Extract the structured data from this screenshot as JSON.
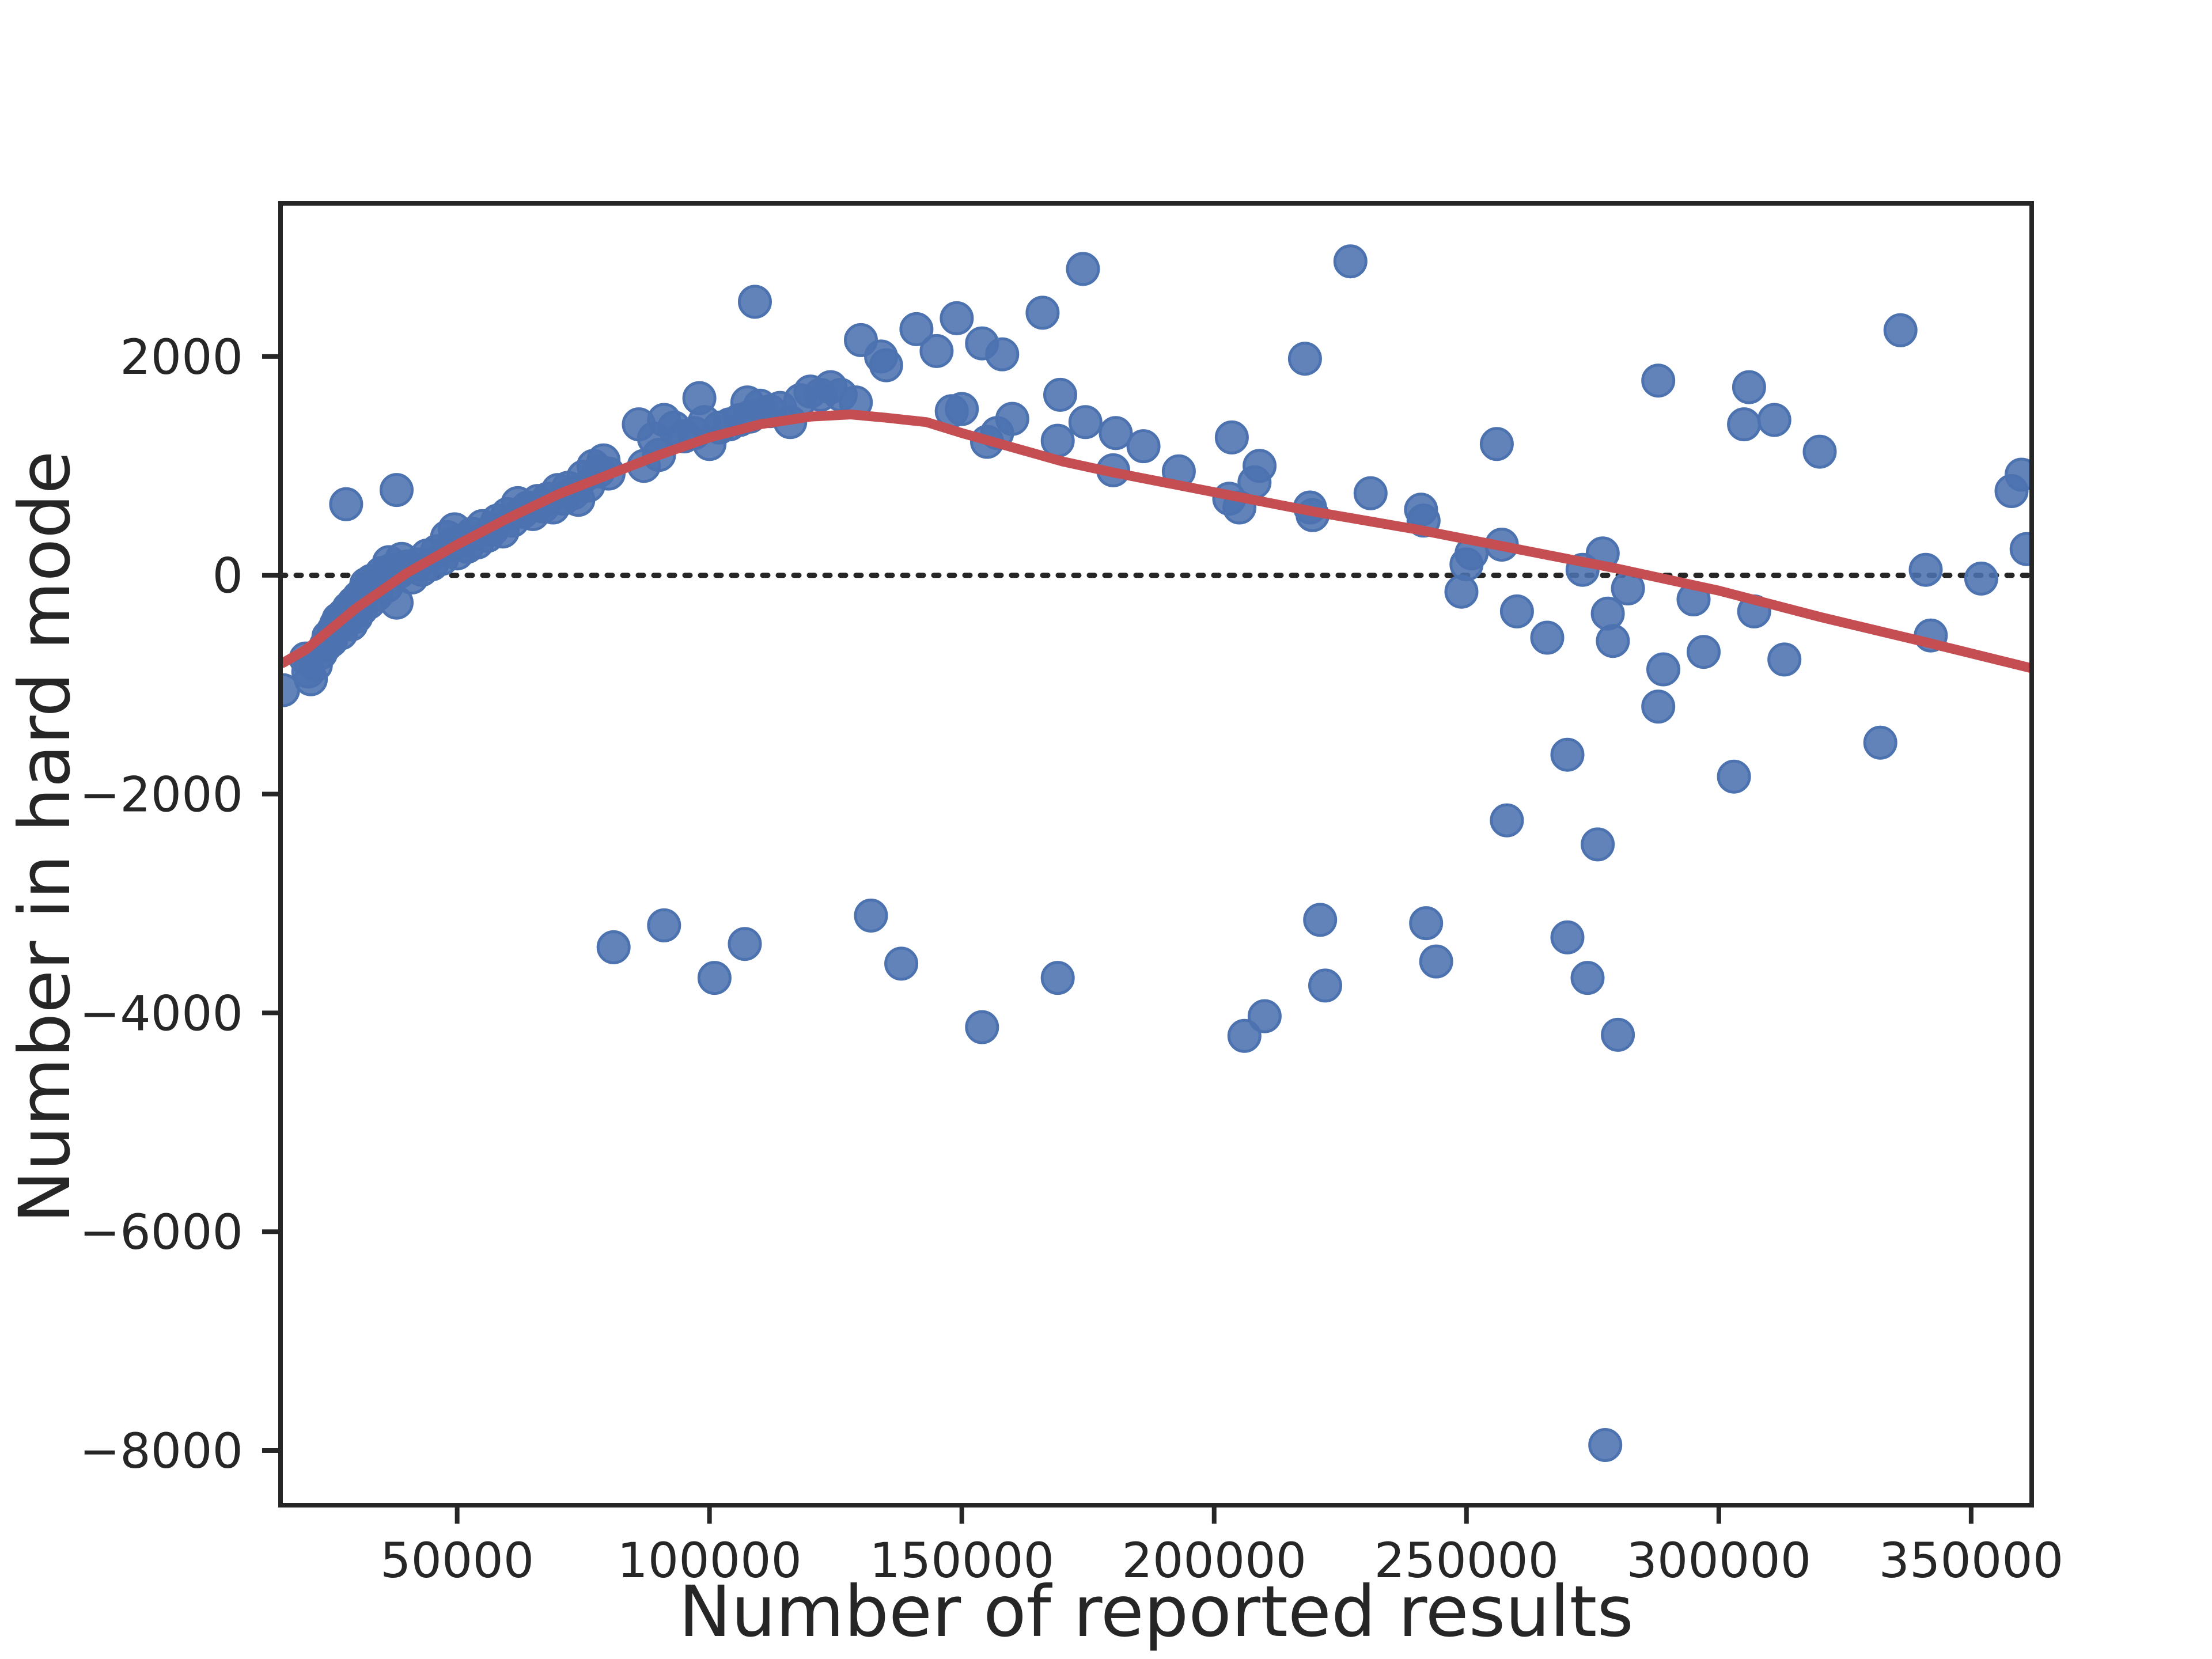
{
  "chart_data": {
    "type": "scatter",
    "title": "",
    "xlabel": "Number of reported results",
    "ylabel": "Number in hard mode",
    "xlim": [
      15000,
      362000
    ],
    "ylim": [
      -8500,
      3400
    ],
    "xticks": [
      50000,
      100000,
      150000,
      200000,
      250000,
      300000,
      350000
    ],
    "yticks": [
      -8000,
      -6000,
      -4000,
      -2000,
      0,
      2000
    ],
    "xtick_labels": [
      "50000",
      "100000",
      "150000",
      "200000",
      "250000",
      "300000",
      "350000"
    ],
    "ytick_labels": [
      "−8000",
      "−6000",
      "−4000",
      "−2000",
      "0",
      "2000"
    ],
    "grid": false,
    "reference_line": {
      "y": 0,
      "style": "dotted",
      "color": "#262626"
    },
    "colors": {
      "points": "#4c72b0",
      "fit_line": "#c44e52",
      "axes": "#262626"
    },
    "series": [
      {
        "kind": "scatter",
        "points": [
          [
            15500,
            -1050
          ],
          [
            20000,
            -760
          ],
          [
            20500,
            -880
          ],
          [
            21000,
            -950
          ],
          [
            22000,
            -820
          ],
          [
            23000,
            -710
          ],
          [
            24000,
            -640
          ],
          [
            24500,
            -560
          ],
          [
            25000,
            -600
          ],
          [
            25500,
            -500
          ],
          [
            26000,
            -450
          ],
          [
            26500,
            -400
          ],
          [
            27000,
            -530
          ],
          [
            27500,
            -360
          ],
          [
            28000,
            -420
          ],
          [
            28500,
            -300
          ],
          [
            29000,
            -450
          ],
          [
            29500,
            -250
          ],
          [
            30000,
            -380
          ],
          [
            30500,
            -200
          ],
          [
            31000,
            -310
          ],
          [
            31500,
            -150
          ],
          [
            32000,
            -80
          ],
          [
            32500,
            -250
          ],
          [
            33000,
            -50
          ],
          [
            34000,
            -180
          ],
          [
            35000,
            20
          ],
          [
            36000,
            -100
          ],
          [
            36500,
            120
          ],
          [
            37000,
            50
          ],
          [
            38000,
            -250
          ],
          [
            38500,
            30
          ],
          [
            39000,
            150
          ],
          [
            40000,
            80
          ],
          [
            41000,
            -20
          ],
          [
            42000,
            100
          ],
          [
            43000,
            50
          ],
          [
            44000,
            180
          ],
          [
            45000,
            100
          ],
          [
            46000,
            220
          ],
          [
            47000,
            150
          ],
          [
            48000,
            350
          ],
          [
            49000,
            280
          ],
          [
            49500,
            420
          ],
          [
            50000,
            200
          ],
          [
            51000,
            320
          ],
          [
            52000,
            260
          ],
          [
            53000,
            380
          ],
          [
            54000,
            300
          ],
          [
            55000,
            450
          ],
          [
            56000,
            360
          ],
          [
            57000,
            420
          ],
          [
            58000,
            500
          ],
          [
            59000,
            400
          ],
          [
            60000,
            560
          ],
          [
            61000,
            500
          ],
          [
            62000,
            660
          ],
          [
            63000,
            580
          ],
          [
            64000,
            620
          ],
          [
            65000,
            560
          ],
          [
            66000,
            680
          ],
          [
            67000,
            630
          ],
          [
            68000,
            700
          ],
          [
            69000,
            620
          ],
          [
            70000,
            780
          ],
          [
            71000,
            700
          ],
          [
            72000,
            800
          ],
          [
            73000,
            750
          ],
          [
            74000,
            690
          ],
          [
            75000,
            900
          ],
          [
            76000,
            820
          ],
          [
            77000,
            1000
          ],
          [
            78000,
            950
          ],
          [
            79000,
            1050
          ],
          [
            80000,
            930
          ],
          [
            28000,
            650
          ],
          [
            38000,
            780
          ],
          [
            86000,
            1380
          ],
          [
            87000,
            1000
          ],
          [
            89000,
            1250
          ],
          [
            90000,
            1100
          ],
          [
            91000,
            1420
          ],
          [
            93000,
            1350
          ],
          [
            95000,
            1270
          ],
          [
            97000,
            1300
          ],
          [
            98000,
            1620
          ],
          [
            99000,
            1400
          ],
          [
            100000,
            1200
          ],
          [
            102000,
            1350
          ],
          [
            104000,
            1380
          ],
          [
            106000,
            1420
          ],
          [
            107500,
            1580
          ],
          [
            108000,
            1450
          ],
          [
            109000,
            2500
          ],
          [
            110000,
            1550
          ],
          [
            112000,
            1500
          ],
          [
            114000,
            1530
          ],
          [
            116000,
            1400
          ],
          [
            118000,
            1600
          ],
          [
            120000,
            1680
          ],
          [
            122000,
            1650
          ],
          [
            124000,
            1720
          ],
          [
            126000,
            1650
          ],
          [
            129000,
            1580
          ],
          [
            130000,
            2150
          ],
          [
            134000,
            2000
          ],
          [
            135000,
            1920
          ],
          [
            141000,
            2250
          ],
          [
            145000,
            2050
          ],
          [
            148000,
            1500
          ],
          [
            149000,
            2350
          ],
          [
            150000,
            1520
          ],
          [
            154000,
            2120
          ],
          [
            155000,
            1220
          ],
          [
            157000,
            1300
          ],
          [
            158000,
            2020
          ],
          [
            160000,
            1430
          ],
          [
            166000,
            2400
          ],
          [
            169000,
            1230
          ],
          [
            169500,
            1650
          ],
          [
            174000,
            2800
          ],
          [
            174500,
            1400
          ],
          [
            180000,
            960
          ],
          [
            180500,
            1300
          ],
          [
            186000,
            1180
          ],
          [
            193000,
            950
          ],
          [
            203000,
            700
          ],
          [
            203500,
            1260
          ],
          [
            205000,
            620
          ],
          [
            208000,
            850
          ],
          [
            209000,
            1000
          ],
          [
            218000,
            1980
          ],
          [
            219000,
            620
          ],
          [
            219500,
            550
          ],
          [
            227000,
            2870
          ],
          [
            231000,
            750
          ],
          [
            241000,
            600
          ],
          [
            241500,
            500
          ],
          [
            249000,
            -150
          ],
          [
            250000,
            100
          ],
          [
            251000,
            200
          ],
          [
            256000,
            1200
          ],
          [
            257000,
            280
          ],
          [
            260000,
            -330
          ],
          [
            266000,
            -570
          ],
          [
            273000,
            50
          ],
          [
            277000,
            200
          ],
          [
            278000,
            -350
          ],
          [
            279000,
            -600
          ],
          [
            282000,
            -120
          ],
          [
            288000,
            1780
          ],
          [
            289000,
            -860
          ],
          [
            295000,
            -220
          ],
          [
            297000,
            -700
          ],
          [
            305000,
            1380
          ],
          [
            306000,
            1720
          ],
          [
            307000,
            -330
          ],
          [
            311000,
            1420
          ],
          [
            313000,
            -770
          ],
          [
            320000,
            1130
          ],
          [
            336000,
            2240
          ],
          [
            341000,
            50
          ],
          [
            342000,
            -550
          ],
          [
            352000,
            -30
          ],
          [
            358000,
            770
          ],
          [
            360000,
            920
          ],
          [
            361000,
            240
          ],
          [
            270000,
            -1640
          ],
          [
            288000,
            -1200
          ],
          [
            303000,
            -1840
          ],
          [
            332000,
            -1530
          ],
          [
            258000,
            -2240
          ],
          [
            276000,
            -2460
          ],
          [
            81000,
            -3400
          ],
          [
            91000,
            -3200
          ],
          [
            101000,
            -3680
          ],
          [
            107000,
            -3370
          ],
          [
            132000,
            -3110
          ],
          [
            138000,
            -3550
          ],
          [
            154000,
            -4130
          ],
          [
            169000,
            -3680
          ],
          [
            206000,
            -4210
          ],
          [
            210000,
            -4030
          ],
          [
            221000,
            -3150
          ],
          [
            222000,
            -3750
          ],
          [
            242000,
            -3180
          ],
          [
            244000,
            -3530
          ],
          [
            270000,
            -3310
          ],
          [
            274000,
            -3680
          ],
          [
            280000,
            -4200
          ],
          [
            277500,
            -7950
          ]
        ]
      },
      {
        "kind": "line",
        "x": [
          15500,
          20000,
          30000,
          40000,
          50000,
          60000,
          70000,
          80000,
          90000,
          100000,
          110000,
          120000,
          128000,
          135000,
          143000,
          150000,
          160000,
          170000,
          180000,
          200000,
          220000,
          240000,
          260000,
          280000,
          300000,
          320000,
          340000,
          362000
        ],
        "y": [
          -800,
          -680,
          -300,
          20,
          280,
          520,
          740,
          920,
          1100,
          1260,
          1380,
          1450,
          1470,
          1440,
          1400,
          1300,
          1170,
          1040,
          940,
          760,
          580,
          420,
          240,
          60,
          -140,
          -380,
          -600,
          -850
        ]
      }
    ]
  }
}
